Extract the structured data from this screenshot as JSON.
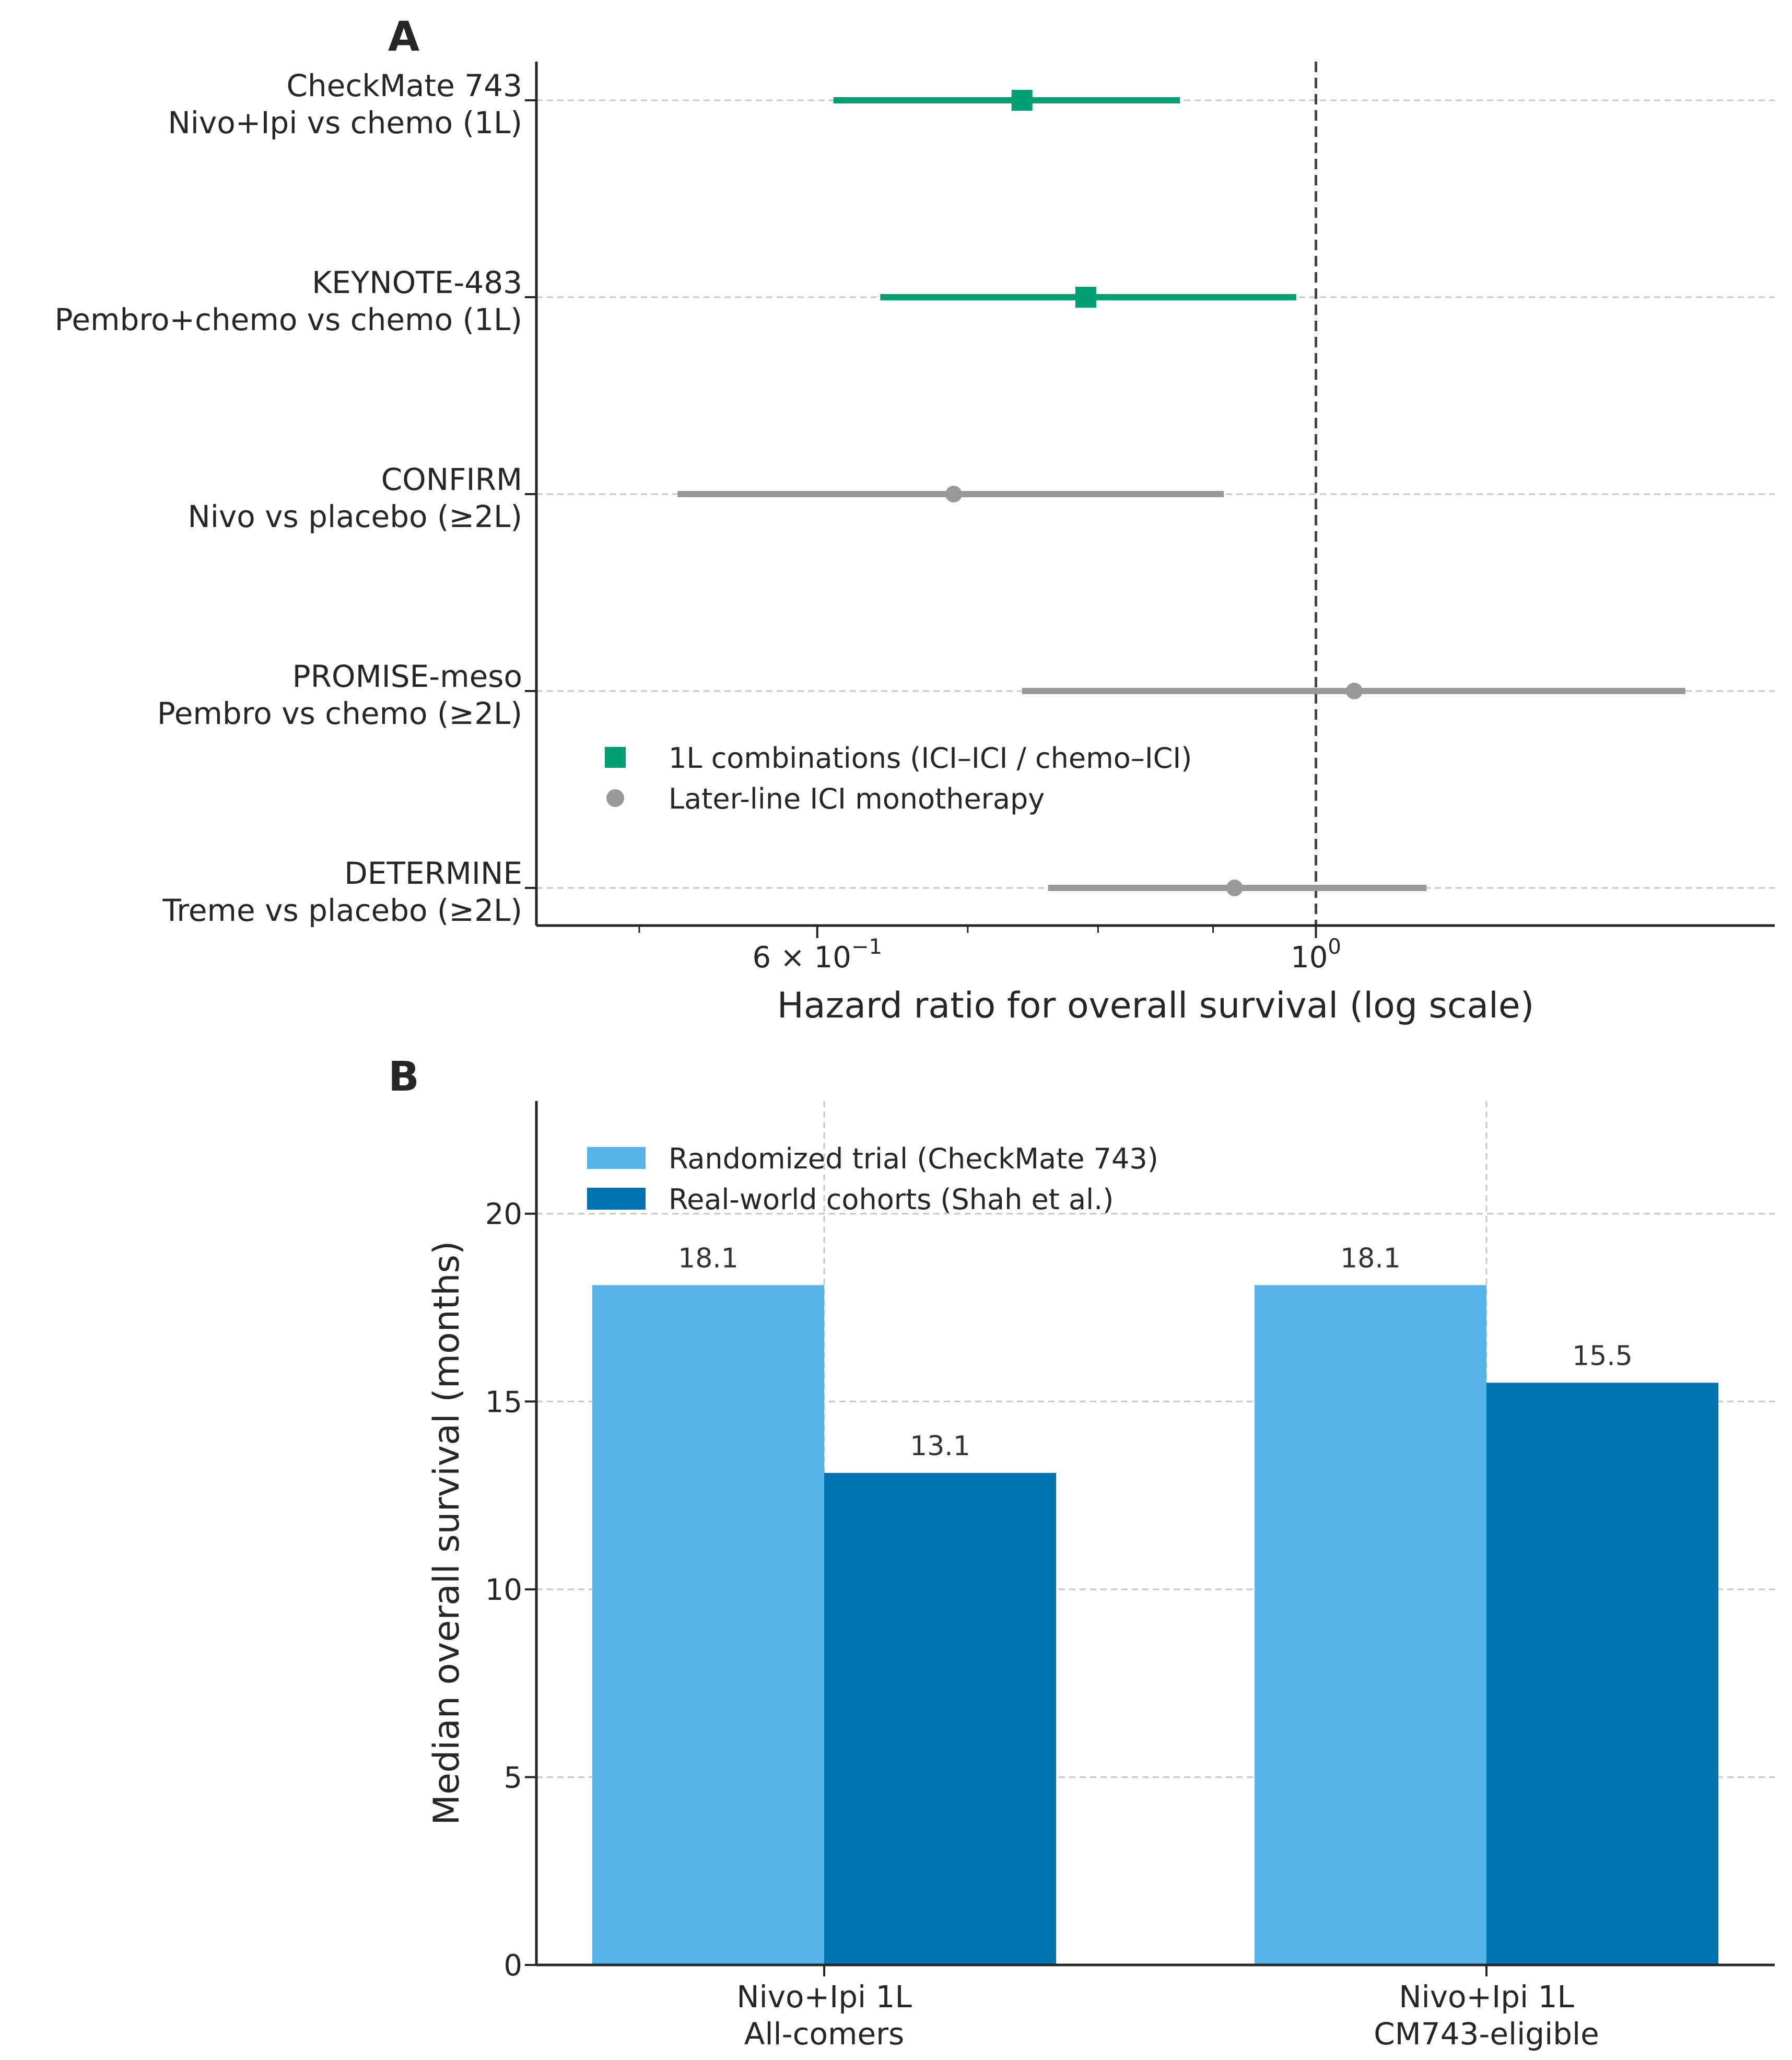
{
  "chart_data": [
    {
      "panel_label": "A",
      "type": "scatter",
      "subtype": "forest",
      "xscale": "log",
      "xlim": [
        0.45,
        1.6
      ],
      "xlabel": "Hazard ratio for overall survival (log scale)",
      "xtick_labels": [
        {
          "value": 0.6,
          "mantissa": "6",
          "exponent": "−1"
        },
        {
          "value": 1.0,
          "mantissa": "10",
          "exponent": "0"
        }
      ],
      "minor_ticks": [
        0.5,
        0.7,
        0.8,
        0.9
      ],
      "reference_line": 1.0,
      "studies": [
        {
          "name": "CheckMate 743",
          "comparison": "Nivo+Ipi vs chemo (1L)",
          "hr": 0.74,
          "lo": 0.61,
          "hi": 0.87,
          "group": "first_line"
        },
        {
          "name": "KEYNOTE-483",
          "comparison": "Pembro+chemo vs chemo (1L)",
          "hr": 0.79,
          "lo": 0.64,
          "hi": 0.98,
          "group": "first_line"
        },
        {
          "name": "CONFIRM",
          "comparison": "Nivo vs placebo (≥2L)",
          "hr": 0.69,
          "lo": 0.52,
          "hi": 0.91,
          "group": "later_line"
        },
        {
          "name": "PROMISE-meso",
          "comparison": "Pembro vs chemo (≥2L)",
          "hr": 1.04,
          "lo": 0.74,
          "hi": 1.46,
          "group": "later_line"
        },
        {
          "name": "DETERMINE",
          "comparison": "Treme vs placebo (≥2L)",
          "hr": 0.92,
          "lo": 0.76,
          "hi": 1.12,
          "group": "later_line"
        }
      ],
      "legend": [
        {
          "key": "first_line",
          "label": "1L combinations (ICI–ICI / chemo–ICI)",
          "color": "#009E73",
          "marker": "square"
        },
        {
          "key": "later_line",
          "label": "Later-line ICI monotherapy",
          "color": "#999999",
          "marker": "circle"
        }
      ],
      "legend_position": "lower-left",
      "grid": "horizontal-dashed"
    },
    {
      "panel_label": "B",
      "type": "bar",
      "categories": [
        {
          "line1": "Nivo+Ipi 1L",
          "line2": "All-comers"
        },
        {
          "line1": "Nivo+Ipi 1L",
          "line2": "CM743-eligible"
        }
      ],
      "series": [
        {
          "name": "Randomized trial (CheckMate 743)",
          "values": [
            18.1,
            18.1
          ],
          "labels": [
            "18.1",
            "18.1"
          ],
          "color": "#56B4E9"
        },
        {
          "name": "Real-world cohorts (Shah et al.)",
          "values": [
            13.1,
            15.5
          ],
          "labels": [
            "13.1",
            "15.5"
          ],
          "color": "#0072B2"
        }
      ],
      "ylabel": "Median overall survival (months)",
      "ylim": [
        0,
        23
      ],
      "yticks": [
        0,
        5,
        10,
        15,
        20
      ],
      "legend_position": "top-left",
      "grid": "both-dashed"
    }
  ]
}
